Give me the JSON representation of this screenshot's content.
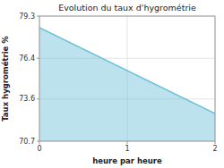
{
  "chart_data": {
    "type": "area",
    "title": "Evolution du taux d'hygrométrie",
    "xlabel": "heure par heure",
    "ylabel": "Taux hygrométrie %",
    "x": [
      0,
      2
    ],
    "values": [
      78.5,
      72.6
    ],
    "color": "#6bbfd8",
    "xlim": [
      0,
      2
    ],
    "xticks": [
      0,
      1,
      2
    ],
    "ylim": [
      70.7,
      79.3
    ],
    "yticks": [
      70.7,
      73.6,
      76.4,
      79.3
    ],
    "grid": true
  }
}
